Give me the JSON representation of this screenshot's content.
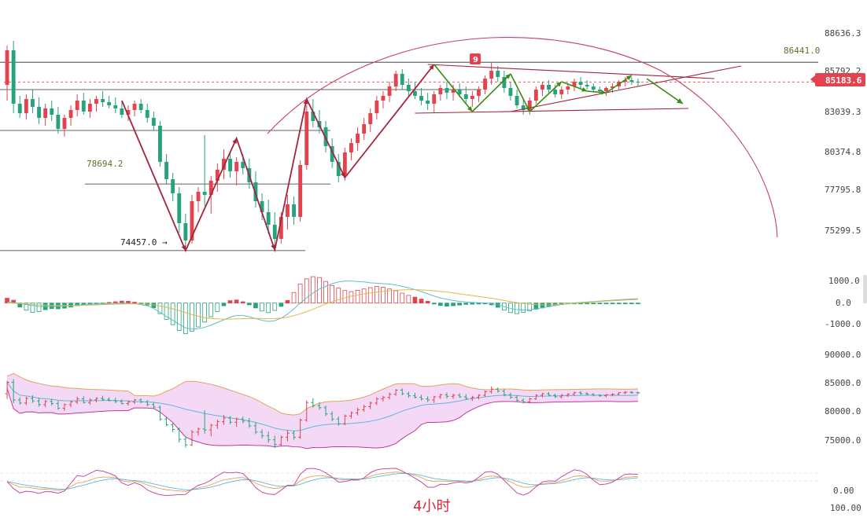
{
  "timeframe_label": "4小时",
  "current_price_label": "85183.6",
  "marker_label": "9",
  "colors": {
    "up": "#e2434f",
    "down": "#26a37a",
    "trendline": "#a3243d",
    "arrow_green": "#3a8a12",
    "arc": "#c8405a",
    "bands_fill": "#f4d9f6",
    "band_upper": "#e4a25c",
    "band_lower": "#c0399b",
    "band_mid": "#5fb8d6",
    "macd_fast": "#5cc0c8",
    "macd_slow": "#e0b84a",
    "level_line": "#2b2b2b"
  },
  "chart_data": [
    {
      "type": "candlestick",
      "panel": "price",
      "y_axis_ticks": [
        "88636.3",
        "85792.2",
        "83039.3",
        "80374.8",
        "77795.8",
        "75299.5"
      ],
      "y_tick_values": [
        88636.3,
        85792.2,
        83039.3,
        80374.8,
        77795.8,
        75299.5
      ],
      "ylim": [
        74500,
        89400
      ],
      "horizontal_levels": [
        {
          "label": "86441.0",
          "value": 86441.0
        },
        {
          "label": "78694.2",
          "value": 78694.2
        },
        {
          "label": "74457.0 →",
          "value": 74457.0
        }
      ],
      "current_price": 85183.6,
      "candles": [
        [
          85000,
          87500,
          84000,
          87200
        ],
        [
          87200,
          87800,
          83200,
          83800
        ],
        [
          83800,
          84300,
          82900,
          83200
        ],
        [
          83200,
          84400,
          82800,
          84100
        ],
        [
          84100,
          84700,
          83200,
          83600
        ],
        [
          83600,
          84200,
          82500,
          82900
        ],
        [
          82900,
          83800,
          82400,
          83500
        ],
        [
          83500,
          84000,
          82700,
          83100
        ],
        [
          83100,
          83600,
          81900,
          82200
        ],
        [
          82200,
          83100,
          81700,
          82900
        ],
        [
          82900,
          83700,
          82400,
          83400
        ],
        [
          83400,
          84400,
          83000,
          84000
        ],
        [
          84000,
          84500,
          83100,
          83300
        ],
        [
          83300,
          84100,
          82900,
          83800
        ],
        [
          83800,
          84300,
          83300,
          84100
        ],
        [
          84100,
          84600,
          83600,
          83900
        ],
        [
          83900,
          84300,
          83500,
          83700
        ],
        [
          83700,
          84200,
          83200,
          83500
        ],
        [
          83500,
          83900,
          82900,
          83100
        ],
        [
          83100,
          83700,
          82700,
          83400
        ],
        [
          83400,
          84000,
          83000,
          83800
        ],
        [
          83800,
          84100,
          83200,
          83400
        ],
        [
          83400,
          83800,
          82600,
          82900
        ],
        [
          82900,
          83300,
          82100,
          82400
        ],
        [
          82400,
          82700,
          79800,
          80100
        ],
        [
          80100,
          80600,
          78700,
          79000
        ],
        [
          79000,
          79400,
          77600,
          78100
        ],
        [
          78100,
          78500,
          75600,
          76200
        ],
        [
          76200,
          76800,
          74600,
          75100
        ],
        [
          75100,
          78000,
          74900,
          77600
        ],
        [
          77600,
          78500,
          76900,
          78200
        ],
        [
          78200,
          81800,
          77300,
          78000
        ],
        [
          78000,
          79200,
          76800,
          78900
        ],
        [
          78900,
          80000,
          78200,
          79600
        ],
        [
          79600,
          80900,
          79000,
          80300
        ],
        [
          80300,
          80700,
          79100,
          79500
        ],
        [
          79500,
          80400,
          78600,
          80100
        ],
        [
          80100,
          80600,
          79300,
          79700
        ],
        [
          79700,
          80300,
          78400,
          78800
        ],
        [
          78800,
          79500,
          77200,
          77600
        ],
        [
          77600,
          78100,
          76400,
          76900
        ],
        [
          76900,
          77700,
          75500,
          76100
        ],
        [
          76100,
          76900,
          74500,
          75200
        ],
        [
          75200,
          76900,
          74900,
          76600
        ],
        [
          76600,
          78000,
          75800,
          77400
        ],
        [
          77400,
          77900,
          76100,
          76600
        ],
        [
          76600,
          80200,
          76300,
          79900
        ],
        [
          79900,
          83700,
          79600,
          83300
        ],
        [
          83300,
          84100,
          82300,
          82700
        ],
        [
          82700,
          83400,
          81900,
          82300
        ],
        [
          82300,
          82700,
          80700,
          81100
        ],
        [
          81100,
          81600,
          79700,
          80100
        ],
        [
          80100,
          80600,
          78800,
          79200
        ],
        [
          79200,
          81000,
          78900,
          80700
        ],
        [
          80700,
          81600,
          80200,
          81300
        ],
        [
          81300,
          82300,
          80800,
          81900
        ],
        [
          81900,
          82900,
          81500,
          82500
        ],
        [
          82500,
          83500,
          82000,
          83200
        ],
        [
          83200,
          84300,
          82800,
          84000
        ],
        [
          84000,
          84600,
          83500,
          84300
        ],
        [
          84300,
          85200,
          83900,
          84900
        ],
        [
          84900,
          85900,
          84600,
          85700
        ],
        [
          85700,
          86000,
          84700,
          85000
        ],
        [
          85000,
          85400,
          84200,
          84600
        ],
        [
          84600,
          85200,
          84100,
          84300
        ],
        [
          84300,
          84800,
          83700,
          84000
        ],
        [
          84000,
          84500,
          83400,
          83800
        ],
        [
          83800,
          84600,
          83200,
          84400
        ],
        [
          84400,
          85000,
          84000,
          84800
        ],
        [
          84800,
          85200,
          84100,
          84500
        ],
        [
          84500,
          85000,
          84000,
          84700
        ],
        [
          84700,
          85100,
          84200,
          84400
        ],
        [
          84400,
          84900,
          83800,
          84100
        ],
        [
          84100,
          84600,
          83600,
          84300
        ],
        [
          84300,
          84900,
          83900,
          84700
        ],
        [
          84700,
          85600,
          84400,
          85400
        ],
        [
          85400,
          86400,
          85000,
          85900
        ],
        [
          85900,
          86200,
          85200,
          85500
        ],
        [
          85500,
          85900,
          84500,
          84800
        ],
        [
          84800,
          85200,
          84000,
          84300
        ],
        [
          84300,
          84700,
          83500,
          83700
        ],
        [
          83700,
          84100,
          83100,
          83400
        ],
        [
          83400,
          84200,
          83100,
          84000
        ],
        [
          84000,
          84900,
          83800,
          84700
        ],
        [
          84700,
          85200,
          84300,
          85000
        ],
        [
          85000,
          85300,
          84500,
          84700
        ],
        [
          84700,
          85000,
          84200,
          84400
        ],
        [
          84400,
          84900,
          84100,
          84700
        ],
        [
          84700,
          85100,
          84400,
          84900
        ],
        [
          84900,
          85400,
          84600,
          85200
        ],
        [
          85200,
          85500,
          84800,
          85000
        ],
        [
          85000,
          85300,
          84700,
          84900
        ],
        [
          84900,
          85100,
          84500,
          84700
        ],
        [
          84700,
          84900,
          84400,
          84600
        ],
        [
          84600,
          84900,
          84300,
          84800
        ],
        [
          84800,
          85100,
          84500,
          84900
        ],
        [
          84900,
          85300,
          84700,
          85200
        ],
        [
          85200,
          85500,
          84900,
          85300
        ],
        [
          85300,
          85500,
          85000,
          85200
        ],
        [
          85200,
          85400,
          84900,
          85184
        ]
      ]
    },
    {
      "type": "bar",
      "panel": "macd",
      "y_axis_ticks": [
        "1000.0",
        "0.0",
        "-1000.0"
      ],
      "y_tick_values": [
        1000,
        0,
        -1000
      ],
      "ylim": [
        -1650,
        1450
      ],
      "histogram": [
        220,
        130,
        -180,
        -320,
        -420,
        -390,
        -300,
        -250,
        -260,
        -230,
        -180,
        -120,
        -80,
        -60,
        -40,
        -20,
        30,
        60,
        90,
        80,
        40,
        -20,
        -90,
        -210,
        -480,
        -740,
        -980,
        -1240,
        -1390,
        -1280,
        -1080,
        -860,
        -620,
        -380,
        -120,
        110,
        140,
        60,
        -80,
        -220,
        -360,
        -430,
        -330,
        -150,
        120,
        480,
        860,
        1100,
        1200,
        1160,
        980,
        800,
        680,
        570,
        520,
        580,
        640,
        700,
        760,
        720,
        640,
        560,
        450,
        350,
        270,
        180,
        80,
        -40,
        -110,
        -140,
        -120,
        -90,
        -60,
        -50,
        -40,
        -30,
        -80,
        -190,
        -320,
        -430,
        -480,
        -420,
        -350,
        -280,
        -220,
        -160,
        -110,
        -70,
        -40,
        -20,
        -10,
        -5,
        -3,
        -2,
        -5,
        -3,
        -2,
        -1,
        -1,
        -1
      ],
      "fast_line": [
        40,
        20,
        -20,
        -70,
        -110,
        -150,
        -160,
        -160,
        -150,
        -140,
        -120,
        -90,
        -70,
        -50,
        -40,
        -30,
        -20,
        -10,
        -5,
        -10,
        -30,
        -70,
        -120,
        -240,
        -420,
        -610,
        -780,
        -960,
        -1120,
        -1180,
        -1160,
        -1100,
        -1000,
        -880,
        -760,
        -640,
        -560,
        -560,
        -620,
        -700,
        -780,
        -830,
        -800,
        -680,
        -500,
        -260,
        0,
        240,
        460,
        640,
        760,
        880,
        960,
        1000,
        1000,
        980,
        960,
        920,
        900,
        880,
        860,
        820,
        760,
        690,
        610,
        520,
        420,
        320,
        230,
        170,
        120,
        80,
        50,
        30,
        15,
        5,
        -20,
        -80,
        -160,
        -240,
        -300,
        -320,
        -300,
        -260,
        -210,
        -160,
        -110,
        -60,
        -20,
        10,
        30,
        50,
        70,
        90,
        110,
        130,
        150,
        170,
        185,
        200
      ],
      "slow_line": [
        10,
        -5,
        -20,
        -40,
        -60,
        -80,
        -95,
        -105,
        -110,
        -115,
        -115,
        -110,
        -100,
        -90,
        -80,
        -70,
        -60,
        -50,
        -40,
        -35,
        -35,
        -40,
        -50,
        -80,
        -130,
        -190,
        -260,
        -340,
        -430,
        -520,
        -600,
        -660,
        -700,
        -720,
        -730,
        -730,
        -720,
        -710,
        -700,
        -700,
        -700,
        -710,
        -700,
        -680,
        -640,
        -570,
        -490,
        -390,
        -280,
        -160,
        -40,
        60,
        150,
        240,
        310,
        370,
        420,
        460,
        500,
        530,
        560,
        580,
        600,
        610,
        610,
        600,
        580,
        560,
        530,
        500,
        460,
        420,
        380,
        340,
        300,
        260,
        220,
        170,
        120,
        70,
        20,
        -20,
        -50,
        -70,
        -80,
        -80,
        -70,
        -50,
        -30,
        -10,
        10,
        30,
        50,
        70,
        90,
        105,
        120,
        135,
        150,
        165
      ]
    },
    {
      "type": "ohlc",
      "panel": "bollinger",
      "y_axis_ticks": [
        "90000.0",
        "85000.0",
        "80000.0",
        "75000.0"
      ],
      "y_tick_values": [
        90000,
        85000,
        80000,
        75000
      ],
      "ylim": [
        71500,
        93500
      ]
    },
    {
      "type": "line",
      "panel": "kdj",
      "y_axis_ticks": [
        "0.00",
        "100.00"
      ],
      "y_tick_values": [
        0,
        100
      ]
    }
  ]
}
